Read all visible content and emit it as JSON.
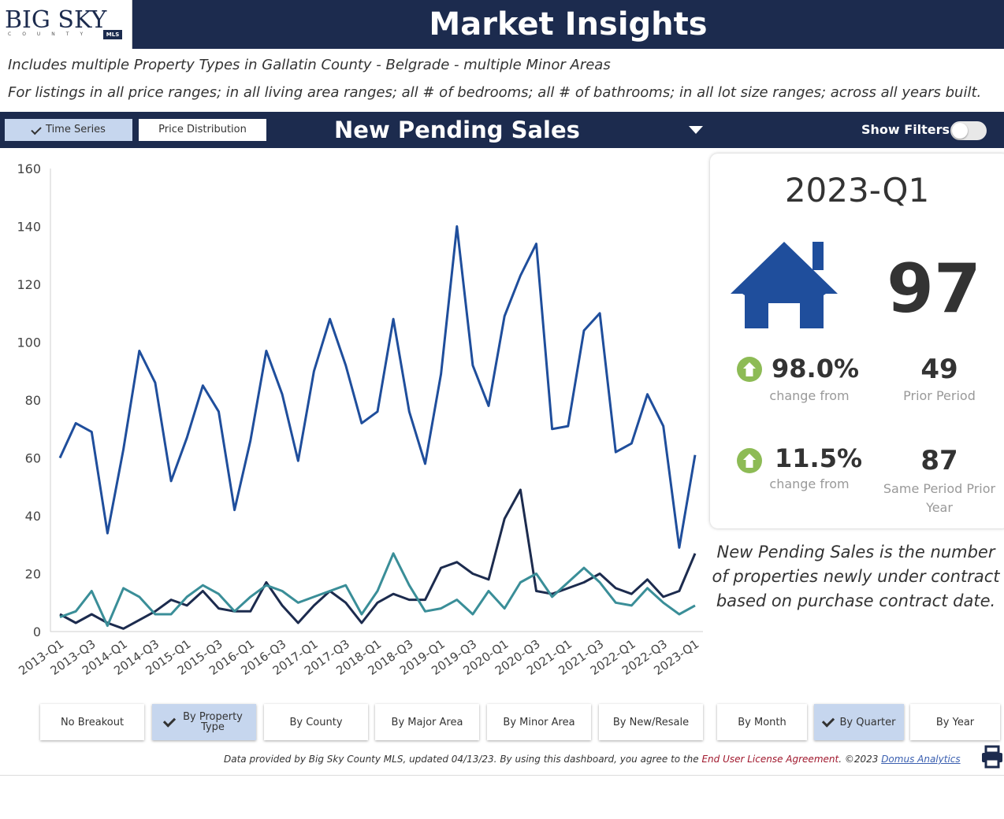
{
  "header": {
    "logo_text": "BIG SKY",
    "logo_sub": "COUNTY",
    "logo_badge": "MLS",
    "title": "Market Insights"
  },
  "subtitle_lines": [
    "Includes multiple Property Types in Gallatin County - Belgrade - multiple Minor Areas",
    "For listings in all price ranges; in all living area ranges; all # of bedrooms; all # of bathrooms; in all lot size ranges; across all years built."
  ],
  "toolbar": {
    "time_series_label": "Time Series",
    "price_distribution_label": "Price Distribution",
    "metric_title": "New Pending Sales",
    "show_filters_label": "Show Filters:",
    "filters_on": false
  },
  "stats": {
    "period": "2023-Q1",
    "value": "97",
    "pct_change_prior": "98.0%",
    "change_from_label": "change from",
    "prior_value": "49",
    "prior_label": "Prior Period",
    "pct_change_year": "11.5%",
    "year_value": "87",
    "year_label": "Same Period Prior Year",
    "up_color": "#8dbb55",
    "house_color": "#1f4e9c"
  },
  "description": "New Pending Sales is the number of properties newly under contract based on purchase contract date.",
  "breakouts": [
    {
      "label": "No Breakout",
      "selected": false
    },
    {
      "label": "By Property Type",
      "selected": true
    },
    {
      "label": "By County",
      "selected": false
    },
    {
      "label": "By Major Area",
      "selected": false
    },
    {
      "label": "By Minor Area",
      "selected": false
    },
    {
      "label": "By New/Resale",
      "selected": false
    },
    {
      "label": "By Month",
      "selected": false
    },
    {
      "label": "By Quarter",
      "selected": true
    },
    {
      "label": "By Year",
      "selected": false
    }
  ],
  "footer": {
    "text_before": "Data provided by Big Sky County MLS, updated 04/13/23.  By using this dashboard, you agree to the ",
    "eula_link": "End User License Agreement",
    "text_mid": ".  ©2023 ",
    "domus_link": "Domus Analytics"
  },
  "chart_data": {
    "type": "line",
    "ylim": [
      0,
      160
    ],
    "yticks": [
      0,
      20,
      40,
      60,
      80,
      100,
      120,
      140,
      160
    ],
    "x": [
      "2013-Q1",
      "2013-Q2",
      "2013-Q3",
      "2013-Q4",
      "2014-Q1",
      "2014-Q2",
      "2014-Q3",
      "2014-Q4",
      "2015-Q1",
      "2015-Q2",
      "2015-Q3",
      "2015-Q4",
      "2016-Q1",
      "2016-Q2",
      "2016-Q3",
      "2016-Q4",
      "2017-Q1",
      "2017-Q2",
      "2017-Q3",
      "2017-Q4",
      "2018-Q1",
      "2018-Q2",
      "2018-Q3",
      "2018-Q4",
      "2019-Q1",
      "2019-Q2",
      "2019-Q3",
      "2019-Q4",
      "2020-Q1",
      "2020-Q2",
      "2020-Q3",
      "2020-Q4",
      "2021-Q1",
      "2021-Q2",
      "2021-Q3",
      "2021-Q4",
      "2022-Q1",
      "2022-Q2",
      "2022-Q3",
      "2022-Q4",
      "2023-Q1"
    ],
    "x_tick_labels": [
      "2013-Q1",
      "2013-Q3",
      "2014-Q1",
      "2014-Q3",
      "2015-Q1",
      "2015-Q3",
      "2016-Q1",
      "2016-Q3",
      "2017-Q1",
      "2017-Q3",
      "2018-Q1",
      "2018-Q3",
      "2019-Q1",
      "2019-Q3",
      "2020-Q1",
      "2020-Q3",
      "2021-Q1",
      "2021-Q3",
      "2022-Q1",
      "2022-Q3",
      "2023-Q1"
    ],
    "grid": false,
    "series": [
      {
        "color": "#1f4e9c",
        "values": [
          60,
          72,
          69,
          34,
          63,
          97,
          86,
          52,
          67,
          85,
          76,
          42,
          66,
          97,
          82,
          59,
          90,
          108,
          92,
          72,
          76,
          108,
          76,
          58,
          89,
          140,
          92,
          78,
          109,
          123,
          134,
          70,
          71,
          104,
          110,
          62,
          65,
          82,
          71,
          29,
          61
        ]
      },
      {
        "color": "#1c2b4e",
        "values": [
          6,
          3,
          6,
          3,
          1,
          4,
          7,
          11,
          9,
          14,
          8,
          7,
          7,
          17,
          9,
          3,
          9,
          14,
          10,
          3,
          10,
          13,
          11,
          11,
          22,
          24,
          20,
          18,
          39,
          49,
          14,
          13,
          15,
          17,
          20,
          15,
          13,
          18,
          12,
          14,
          27
        ]
      },
      {
        "color": "#3a8e98",
        "values": [
          5,
          7,
          14,
          2,
          15,
          12,
          6,
          6,
          12,
          16,
          13,
          7,
          12,
          16,
          14,
          10,
          12,
          14,
          16,
          6,
          14,
          27,
          16,
          7,
          8,
          11,
          6,
          14,
          8,
          17,
          20,
          12,
          17,
          22,
          17,
          10,
          9,
          15,
          10,
          6,
          9
        ]
      }
    ]
  }
}
